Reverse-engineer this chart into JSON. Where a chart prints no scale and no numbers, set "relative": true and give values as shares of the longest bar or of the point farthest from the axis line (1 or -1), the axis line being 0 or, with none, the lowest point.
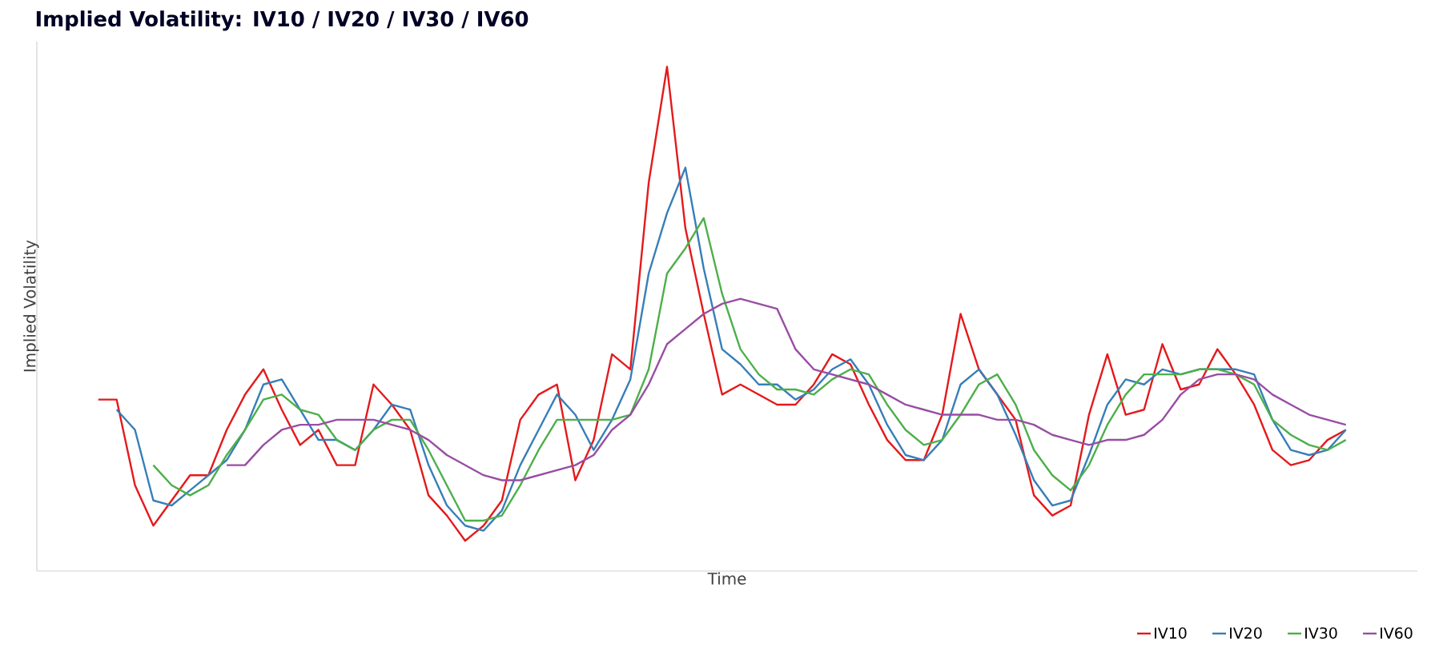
{
  "chart_data": {
    "type": "line",
    "title": "Implied Volatility: IV10 / IV20 / IV30 / IV60",
    "xlabel": "Time",
    "ylabel": "Implied Volatility",
    "relative": true,
    "legend": "bottom right",
    "categories": [
      null,
      null,
      null,
      null,
      null,
      null,
      null,
      null,
      null,
      null,
      null,
      null,
      null,
      null,
      null,
      null,
      null,
      null,
      null,
      null,
      null,
      null,
      null,
      null,
      null,
      null,
      null,
      null,
      null,
      null,
      null,
      null,
      null,
      null,
      null,
      null,
      null,
      null,
      null,
      null,
      null,
      null,
      null,
      null,
      null,
      null,
      null,
      null,
      null,
      null,
      null,
      null,
      null,
      null,
      null,
      null,
      null,
      null,
      null,
      null,
      null,
      null,
      null,
      null,
      null,
      null,
      null,
      null,
      null
    ],
    "series": [
      {
        "name": "IV10",
        "color": "#e41a1c",
        "values": [
          0.34,
          0.34,
          0.17,
          0.09,
          0.14,
          0.19,
          0.19,
          0.28,
          0.35,
          0.4,
          0.32,
          0.25,
          0.28,
          0.21,
          0.21,
          0.37,
          0.33,
          0.28,
          0.15,
          0.11,
          0.06,
          0.09,
          0.14,
          0.3,
          0.35,
          0.37,
          0.18,
          0.26,
          0.43,
          0.4,
          0.77,
          1,
          0.68,
          0.51,
          0.35,
          0.37,
          0.35,
          0.33,
          0.33,
          0.37,
          0.43,
          0.41,
          0.33,
          0.26,
          0.22,
          0.22,
          0.31,
          0.51,
          0.4,
          0.35,
          0.3,
          0.15,
          0.11,
          0.13,
          0.31,
          0.43,
          0.31,
          0.32,
          0.45,
          0.36,
          0.37,
          0.44,
          0.39,
          0.33,
          0.24,
          0.21,
          0.22,
          0.26,
          0.28
        ]
      },
      {
        "name": "IV20",
        "color": "#377eb8",
        "values": [
          null,
          0.32,
          0.28,
          0.14,
          0.13,
          0.16,
          0.19,
          0.22,
          0.28,
          0.37,
          0.38,
          0.32,
          0.26,
          0.26,
          0.24,
          0.28,
          0.33,
          0.32,
          0.21,
          0.13,
          0.09,
          0.08,
          0.12,
          0.21,
          0.28,
          0.35,
          0.31,
          0.24,
          0.3,
          0.38,
          0.59,
          0.71,
          0.8,
          0.6,
          0.44,
          0.41,
          0.37,
          0.37,
          0.34,
          0.36,
          0.4,
          0.42,
          0.37,
          0.29,
          0.23,
          0.22,
          0.26,
          0.37,
          0.4,
          0.35,
          0.27,
          0.18,
          0.13,
          0.14,
          0.23,
          0.33,
          0.38,
          0.37,
          0.4,
          0.39,
          0.4,
          0.4,
          0.4,
          0.39,
          0.3,
          0.24,
          0.23,
          0.24,
          0.28
        ]
      },
      {
        "name": "IV30",
        "color": "#4daf4a",
        "values": [
          null,
          null,
          null,
          0.21,
          0.17,
          0.15,
          0.17,
          0.23,
          0.28,
          0.34,
          0.35,
          0.32,
          0.31,
          0.26,
          0.24,
          0.28,
          0.3,
          0.3,
          0.24,
          0.17,
          0.1,
          0.1,
          0.11,
          0.17,
          0.24,
          0.3,
          0.3,
          0.3,
          0.3,
          0.31,
          0.4,
          0.59,
          0.64,
          0.7,
          0.55,
          0.44,
          0.39,
          0.36,
          0.36,
          0.35,
          0.38,
          0.4,
          0.39,
          0.33,
          0.28,
          0.25,
          0.26,
          0.31,
          0.37,
          0.39,
          0.33,
          0.24,
          0.19,
          0.16,
          0.21,
          0.29,
          0.35,
          0.39,
          0.39,
          0.39,
          0.4,
          0.4,
          0.39,
          0.37,
          0.3,
          0.27,
          0.25,
          0.24,
          0.26
        ]
      },
      {
        "name": "IV60",
        "color": "#984ea3",
        "values": [
          null,
          null,
          null,
          null,
          null,
          null,
          null,
          0.21,
          0.21,
          0.25,
          0.28,
          0.29,
          0.29,
          0.3,
          0.3,
          0.3,
          0.29,
          0.28,
          0.26,
          0.23,
          0.21,
          0.19,
          0.18,
          0.18,
          0.19,
          0.2,
          0.21,
          0.23,
          0.28,
          0.31,
          0.37,
          0.45,
          0.48,
          0.51,
          0.53,
          0.54,
          0.53,
          0.52,
          0.44,
          0.4,
          0.39,
          0.38,
          0.37,
          0.35,
          0.33,
          0.32,
          0.31,
          0.31,
          0.31,
          0.3,
          0.3,
          0.29,
          0.27,
          0.26,
          0.25,
          0.26,
          0.26,
          0.27,
          0.3,
          0.35,
          0.38,
          0.39,
          0.39,
          0.38,
          0.35,
          0.33,
          0.31,
          0.3,
          0.29
        ]
      }
    ]
  }
}
